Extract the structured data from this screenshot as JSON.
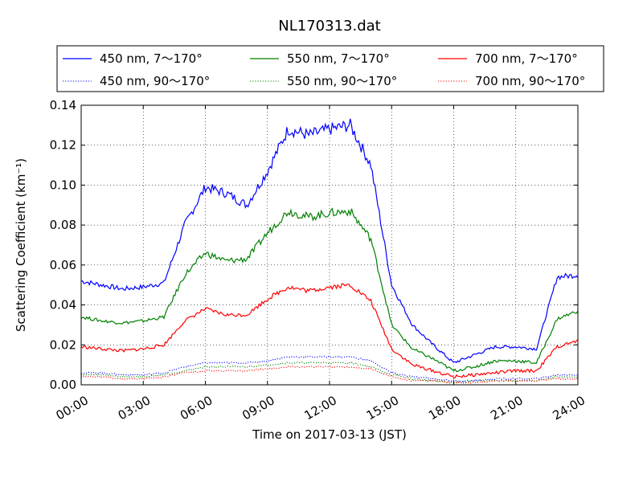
{
  "chart_data": {
    "type": "line",
    "title": "NL170313.dat",
    "xlabel": "Time on 2017-03-13 (JST)",
    "ylabel": "Scattering Coefficient (km⁻¹)",
    "xlim": [
      "00:00",
      "24:00"
    ],
    "ylim": [
      0.0,
      0.14
    ],
    "x_ticks": [
      "00:00",
      "03:00",
      "06:00",
      "09:00",
      "12:00",
      "15:00",
      "18:00",
      "21:00",
      "24:00"
    ],
    "y_ticks": [
      "0.00",
      "0.02",
      "0.04",
      "0.06",
      "0.08",
      "0.10",
      "0.12",
      "0.14"
    ],
    "grid": true,
    "legend_placement": "top, outside plot",
    "x": [
      "00:00",
      "01:00",
      "02:00",
      "03:00",
      "04:00",
      "05:00",
      "06:00",
      "07:00",
      "08:00",
      "09:00",
      "10:00",
      "11:00",
      "12:00",
      "13:00",
      "14:00",
      "15:00",
      "16:00",
      "17:00",
      "18:00",
      "19:00",
      "20:00",
      "21:00",
      "22:00",
      "23:00",
      "24:00"
    ],
    "series": [
      {
        "name": "450 nm, 7～170°",
        "color": "#0000ff",
        "style": "solid",
        "values": [
          0.052,
          0.05,
          0.048,
          0.049,
          0.051,
          0.08,
          0.099,
          0.096,
          0.09,
          0.107,
          0.128,
          0.125,
          0.128,
          0.13,
          0.11,
          0.05,
          0.03,
          0.02,
          0.011,
          0.015,
          0.019,
          0.019,
          0.018,
          0.054,
          0.055
        ]
      },
      {
        "name": "550 nm, 7～170°",
        "color": "#008000",
        "style": "solid",
        "values": [
          0.034,
          0.032,
          0.031,
          0.032,
          0.034,
          0.055,
          0.066,
          0.062,
          0.063,
          0.076,
          0.087,
          0.084,
          0.086,
          0.087,
          0.073,
          0.03,
          0.018,
          0.013,
          0.007,
          0.009,
          0.012,
          0.012,
          0.011,
          0.033,
          0.037
        ]
      },
      {
        "name": "700 nm, 7～170°",
        "color": "#ff0000",
        "style": "solid",
        "values": [
          0.019,
          0.018,
          0.017,
          0.018,
          0.02,
          0.032,
          0.038,
          0.035,
          0.035,
          0.043,
          0.049,
          0.047,
          0.049,
          0.05,
          0.042,
          0.018,
          0.01,
          0.007,
          0.004,
          0.005,
          0.006,
          0.007,
          0.007,
          0.019,
          0.022
        ]
      },
      {
        "name": "450 nm, 90～170°",
        "color": "#0000ff",
        "style": "dotted",
        "values": [
          0.006,
          0.006,
          0.005,
          0.005,
          0.006,
          0.009,
          0.011,
          0.011,
          0.011,
          0.012,
          0.014,
          0.014,
          0.014,
          0.014,
          0.012,
          0.006,
          0.004,
          0.003,
          0.002,
          0.002,
          0.003,
          0.003,
          0.003,
          0.005,
          0.005
        ]
      },
      {
        "name": "550 nm, 90～170°",
        "color": "#008000",
        "style": "dotted",
        "values": [
          0.005,
          0.005,
          0.004,
          0.004,
          0.005,
          0.007,
          0.009,
          0.009,
          0.009,
          0.01,
          0.011,
          0.011,
          0.011,
          0.011,
          0.009,
          0.005,
          0.003,
          0.002,
          0.001,
          0.002,
          0.002,
          0.002,
          0.002,
          0.004,
          0.004
        ]
      },
      {
        "name": "700 nm, 90～170°",
        "color": "#ff0000",
        "style": "dotted",
        "values": [
          0.004,
          0.004,
          0.003,
          0.003,
          0.004,
          0.006,
          0.007,
          0.007,
          0.007,
          0.008,
          0.009,
          0.009,
          0.009,
          0.009,
          0.008,
          0.004,
          0.002,
          0.002,
          0.001,
          0.001,
          0.002,
          0.002,
          0.002,
          0.003,
          0.003
        ]
      }
    ],
    "legend_order": [
      0,
      1,
      2,
      3,
      4,
      5
    ]
  }
}
